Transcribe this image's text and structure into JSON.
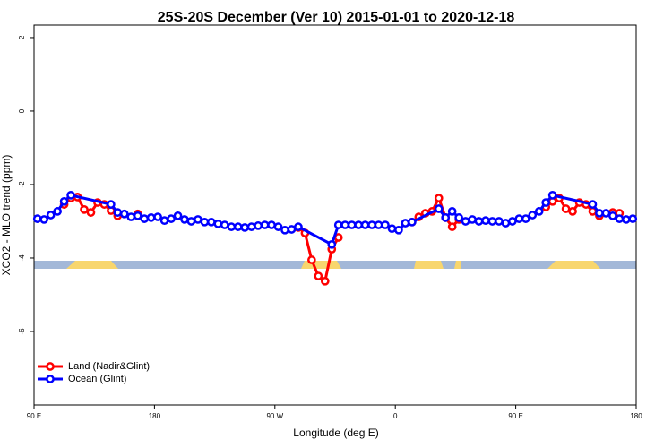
{
  "chart_data": {
    "type": "line",
    "title": "25S-20S December (Ver 10)   2015-01-01 to 2020-12-18",
    "x_label": "Longitude (deg E)",
    "y_label": "XCO2 - MLO trend (ppm)",
    "xlim": [
      90,
      540
    ],
    "ylim": [
      -8,
      2.34
    ],
    "xticks": [
      {
        "value": 90,
        "label": "90 E"
      },
      {
        "value": 180,
        "label": "180"
      },
      {
        "value": 270,
        "label": "90 W"
      },
      {
        "value": 360,
        "label": "0"
      },
      {
        "value": 450,
        "label": "90 E"
      },
      {
        "value": 540,
        "label": "180"
      }
    ],
    "yticks": [
      2,
      0,
      -2,
      -4,
      -6
    ],
    "legend": "bottomleft",
    "series": [
      {
        "name": "Land (Nadir&Glint)",
        "color": "#ff0000",
        "x": [
          112.5,
          117.5,
          122.5,
          127.5,
          132.5,
          137.5,
          142.5,
          147.5,
          152.5,
          157.5,
          167.5,
          172.5,
          287.5,
          292.5,
          297.5,
          302.5,
          307.5,
          312.5,
          317.5,
          322.5,
          372.5,
          377.5,
          382.5,
          387.5,
          392.5,
          397.5,
          402.5,
          407.5,
          412.5,
          472.5,
          477.5,
          482.5,
          487.5,
          492.5,
          497.5,
          502.5,
          507.5,
          512.5,
          517.5,
          522.5,
          527.5
        ],
        "values": [
          -2.54,
          -2.37,
          -2.34,
          -2.68,
          -2.76,
          -2.49,
          -2.54,
          -2.71,
          -2.85,
          null,
          -2.8,
          null,
          -3.17,
          -3.32,
          -4.05,
          -4.49,
          -4.63,
          -3.76,
          -3.44,
          null,
          -3.02,
          -2.88,
          -2.78,
          -2.73,
          -2.37,
          -2.9,
          -3.15,
          -2.95,
          null,
          -2.61,
          -2.46,
          -2.37,
          -2.66,
          -2.73,
          -2.49,
          -2.54,
          -2.73,
          -2.85,
          null,
          -2.76,
          -2.78
        ]
      },
      {
        "name": "Ocean (Glint)",
        "color": "#0000ff",
        "x": [
          92.5,
          97.5,
          102.5,
          107.5,
          112.5,
          117.5,
          147.5,
          152.5,
          157.5,
          162.5,
          167.5,
          172.5,
          177.5,
          182.5,
          187.5,
          192.5,
          197.5,
          202.5,
          207.5,
          212.5,
          217.5,
          222.5,
          227.5,
          232.5,
          237.5,
          242.5,
          247.5,
          252.5,
          257.5,
          262.5,
          267.5,
          272.5,
          277.5,
          282.5,
          287.5,
          312.5,
          317.5,
          322.5,
          327.5,
          332.5,
          337.5,
          342.5,
          347.5,
          352.5,
          357.5,
          362.5,
          367.5,
          372.5,
          392.5,
          397.5,
          402.5,
          407.5,
          412.5,
          417.5,
          422.5,
          427.5,
          432.5,
          437.5,
          442.5,
          447.5,
          452.5,
          457.5,
          462.5,
          467.5,
          472.5,
          477.5,
          507.5,
          512.5,
          517.5,
          522.5,
          527.5,
          532.5,
          537.5
        ],
        "values": [
          -2.93,
          -2.95,
          -2.83,
          -2.73,
          -2.46,
          -2.29,
          -2.54,
          -2.76,
          -2.8,
          -2.88,
          -2.85,
          -2.93,
          -2.9,
          -2.88,
          -2.98,
          -2.93,
          -2.85,
          -2.95,
          -3.0,
          -2.95,
          -3.02,
          -3.02,
          -3.07,
          -3.1,
          -3.15,
          -3.15,
          -3.17,
          -3.15,
          -3.12,
          -3.1,
          -3.1,
          -3.15,
          -3.24,
          -3.22,
          -3.15,
          -3.63,
          -3.1,
          -3.1,
          -3.1,
          -3.1,
          -3.1,
          -3.1,
          -3.1,
          -3.1,
          -3.2,
          -3.24,
          -3.05,
          -3.02,
          -2.66,
          -2.9,
          -2.73,
          -2.9,
          -3.0,
          -2.95,
          -3.0,
          -2.98,
          -3.0,
          -3.0,
          -3.05,
          -3.0,
          -2.93,
          -2.93,
          -2.83,
          -2.73,
          -2.49,
          -2.29,
          -2.54,
          -2.78,
          -2.78,
          -2.85,
          -2.93,
          -2.95,
          -2.93
        ]
      }
    ]
  }
}
